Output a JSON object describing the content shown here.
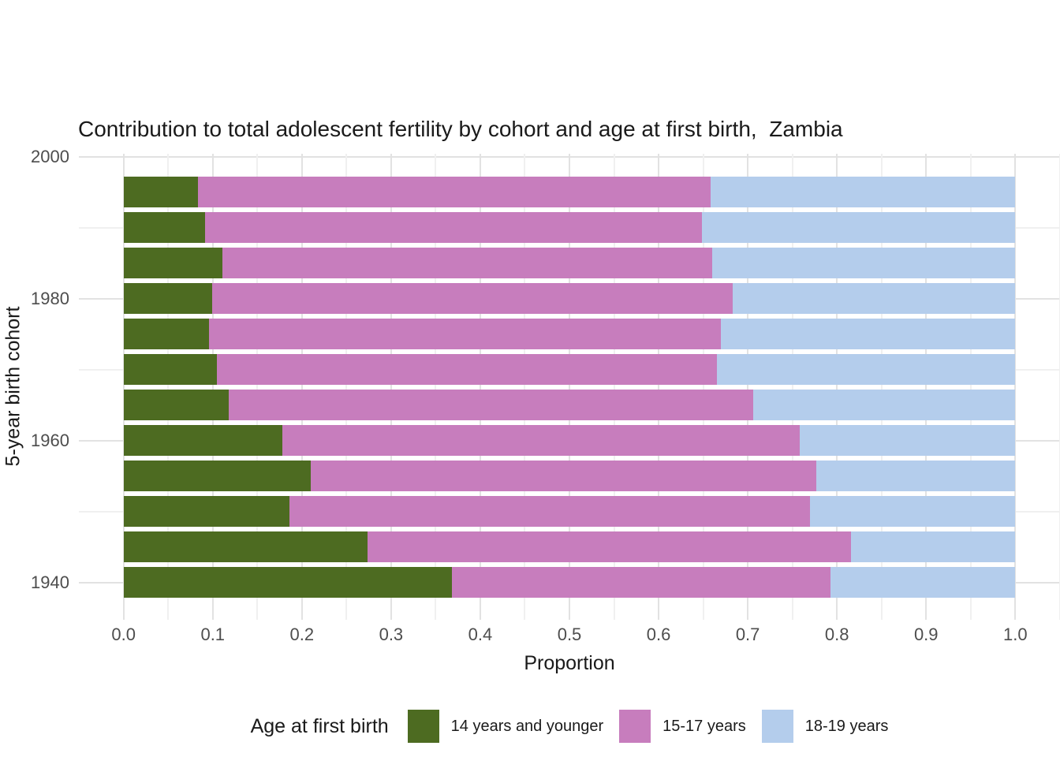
{
  "chart_data": {
    "type": "bar",
    "orientation": "horizontal",
    "stacked": true,
    "title": "Contribution to total adolescent fertility by cohort and age at first birth,  Zambia",
    "xlabel": "Proportion",
    "ylabel": "5-year birth cohort",
    "xlim": [
      0.0,
      1.0
    ],
    "x_ticks": [
      0.0,
      0.1,
      0.2,
      0.3,
      0.4,
      0.5,
      0.6,
      0.7,
      0.8,
      0.9,
      1.0
    ],
    "x_tick_labels": [
      "0.0",
      "0.1",
      "0.2",
      "0.3",
      "0.4",
      "0.5",
      "0.6",
      "0.7",
      "0.8",
      "0.9",
      "1.0"
    ],
    "y_ticks": [
      1940,
      1960,
      1980,
      2000
    ],
    "y_tick_labels": [
      "1940",
      "1960",
      "1980",
      "2000"
    ],
    "y_minor_ticks": [
      1950,
      1970,
      1990
    ],
    "x_minor_ticks": [
      0.05,
      0.15,
      0.25,
      0.35,
      0.45,
      0.55,
      0.65,
      0.75,
      0.85,
      0.95,
      1.05
    ],
    "grid": true,
    "legend_title": "Age at first birth",
    "legend_position": "bottom",
    "categories": [
      1995,
      1990,
      1985,
      1980,
      1975,
      1970,
      1965,
      1960,
      1955,
      1950,
      1945,
      1940
    ],
    "series": [
      {
        "name": "14 years and younger",
        "color": "#4d6b21",
        "values": [
          0.083,
          0.091,
          0.111,
          0.099,
          0.096,
          0.105,
          0.118,
          0.178,
          0.21,
          0.186,
          0.274,
          0.368
        ]
      },
      {
        "name": "15-17 years",
        "color": "#c77dbd",
        "values": [
          0.575,
          0.558,
          0.549,
          0.584,
          0.574,
          0.56,
          0.588,
          0.58,
          0.567,
          0.584,
          0.542,
          0.425
        ]
      },
      {
        "name": "18-19 years",
        "color": "#b4cdec",
        "values": [
          0.342,
          0.351,
          0.34,
          0.317,
          0.33,
          0.335,
          0.294,
          0.242,
          0.223,
          0.23,
          0.184,
          0.207
        ]
      }
    ]
  },
  "colors": {
    "grid_major": "#e2e2e2",
    "grid_minor": "#f0f0f0",
    "tick_label": "#4d4d4d",
    "text": "#1a1a1a",
    "background": "#ffffff"
  }
}
